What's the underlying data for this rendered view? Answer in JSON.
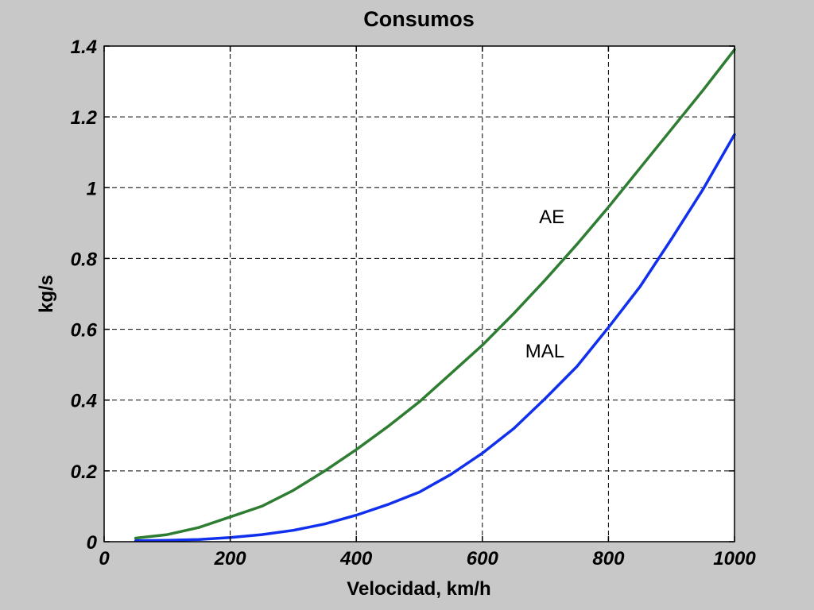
{
  "chart_data": {
    "type": "line",
    "title": "Consumos",
    "xlabel": "Velocidad, km/h",
    "ylabel": "kg/s",
    "xlim": [
      0,
      1000
    ],
    "ylim": [
      0,
      1.4
    ],
    "xticks": [
      0,
      200,
      400,
      600,
      800,
      1000
    ],
    "yticks": [
      0,
      0.2,
      0.4,
      0.6,
      0.8,
      1,
      1.2,
      1.4
    ],
    "xtick_labels": [
      "0",
      "200",
      "400",
      "600",
      "800",
      "1000"
    ],
    "ytick_labels": [
      "0",
      "0.2",
      "0.4",
      "0.6",
      "0.8",
      "1",
      "1.2",
      "1.4"
    ],
    "grid": true,
    "background": "#ffffff",
    "series": [
      {
        "name": "AE",
        "color": "#2e7d32",
        "x": [
          50,
          100,
          150,
          200,
          250,
          300,
          350,
          400,
          450,
          500,
          550,
          600,
          650,
          700,
          750,
          800,
          850,
          900,
          950,
          1000
        ],
        "y": [
          0.01,
          0.02,
          0.04,
          0.07,
          0.1,
          0.145,
          0.2,
          0.26,
          0.325,
          0.395,
          0.475,
          0.555,
          0.645,
          0.74,
          0.84,
          0.945,
          1.055,
          1.165,
          1.275,
          1.39
        ]
      },
      {
        "name": "MAL",
        "color": "#1030ee",
        "x": [
          50,
          100,
          150,
          200,
          250,
          300,
          350,
          400,
          450,
          500,
          550,
          600,
          650,
          700,
          750,
          800,
          850,
          900,
          950,
          1000
        ],
        "y": [
          0.003,
          0.004,
          0.006,
          0.012,
          0.02,
          0.032,
          0.05,
          0.075,
          0.105,
          0.14,
          0.19,
          0.25,
          0.32,
          0.405,
          0.495,
          0.605,
          0.72,
          0.855,
          0.995,
          1.15
        ]
      }
    ],
    "annotations": [
      {
        "text": "AE",
        "x": 690,
        "y": 0.9
      },
      {
        "text": "MAL",
        "x": 668,
        "y": 0.52
      }
    ]
  }
}
